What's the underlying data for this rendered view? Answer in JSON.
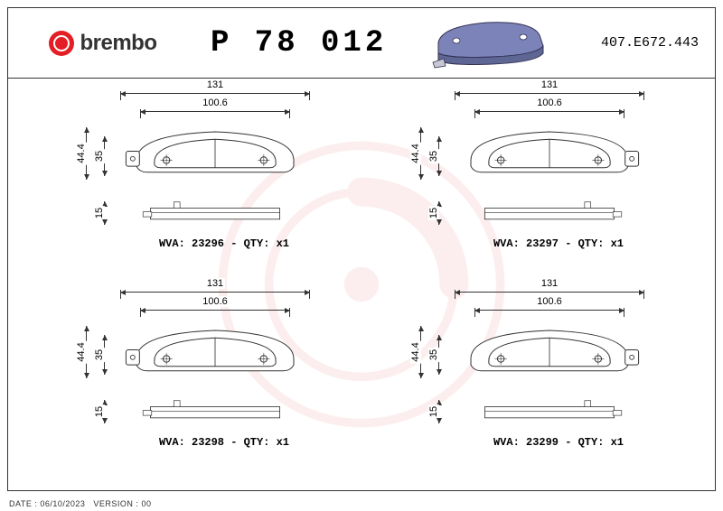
{
  "brand": "brembo",
  "part_number": "P 78 012",
  "doc_code": "407.E672.443",
  "footer_date_label": "DATE :",
  "footer_date": "06/10/2023",
  "footer_version_label": "VERSION :",
  "footer_version": "00",
  "colors": {
    "brand_red": "#e31e24",
    "line": "#333333",
    "pad_fill": "#ffffff",
    "pad_stroke": "#333333",
    "thumb_fill": "#7b83b8",
    "thumb_stroke": "#333355",
    "watermark": "#e31e24"
  },
  "pads": [
    {
      "pos": "tl",
      "wva": "23296",
      "qty": "x1",
      "dims": {
        "outer_w": "131",
        "inner_w": "100.6",
        "outer_h": "44.4",
        "inner_h": "35",
        "thick": "15"
      },
      "ear": "left"
    },
    {
      "pos": "tr",
      "wva": "23297",
      "qty": "x1",
      "dims": {
        "outer_w": "131",
        "inner_w": "100.6",
        "outer_h": "44.4",
        "inner_h": "35",
        "thick": "15"
      },
      "ear": "right"
    },
    {
      "pos": "bl",
      "wva": "23298",
      "qty": "x1",
      "dims": {
        "outer_w": "131",
        "inner_w": "100.6",
        "outer_h": "44.4",
        "inner_h": "35",
        "thick": "15"
      },
      "ear": "left"
    },
    {
      "pos": "br",
      "wva": "23299",
      "qty": "x1",
      "dims": {
        "outer_w": "131",
        "inner_w": "100.6",
        "outer_h": "44.4",
        "inner_h": "35",
        "thick": "15"
      },
      "ear": "right"
    }
  ]
}
